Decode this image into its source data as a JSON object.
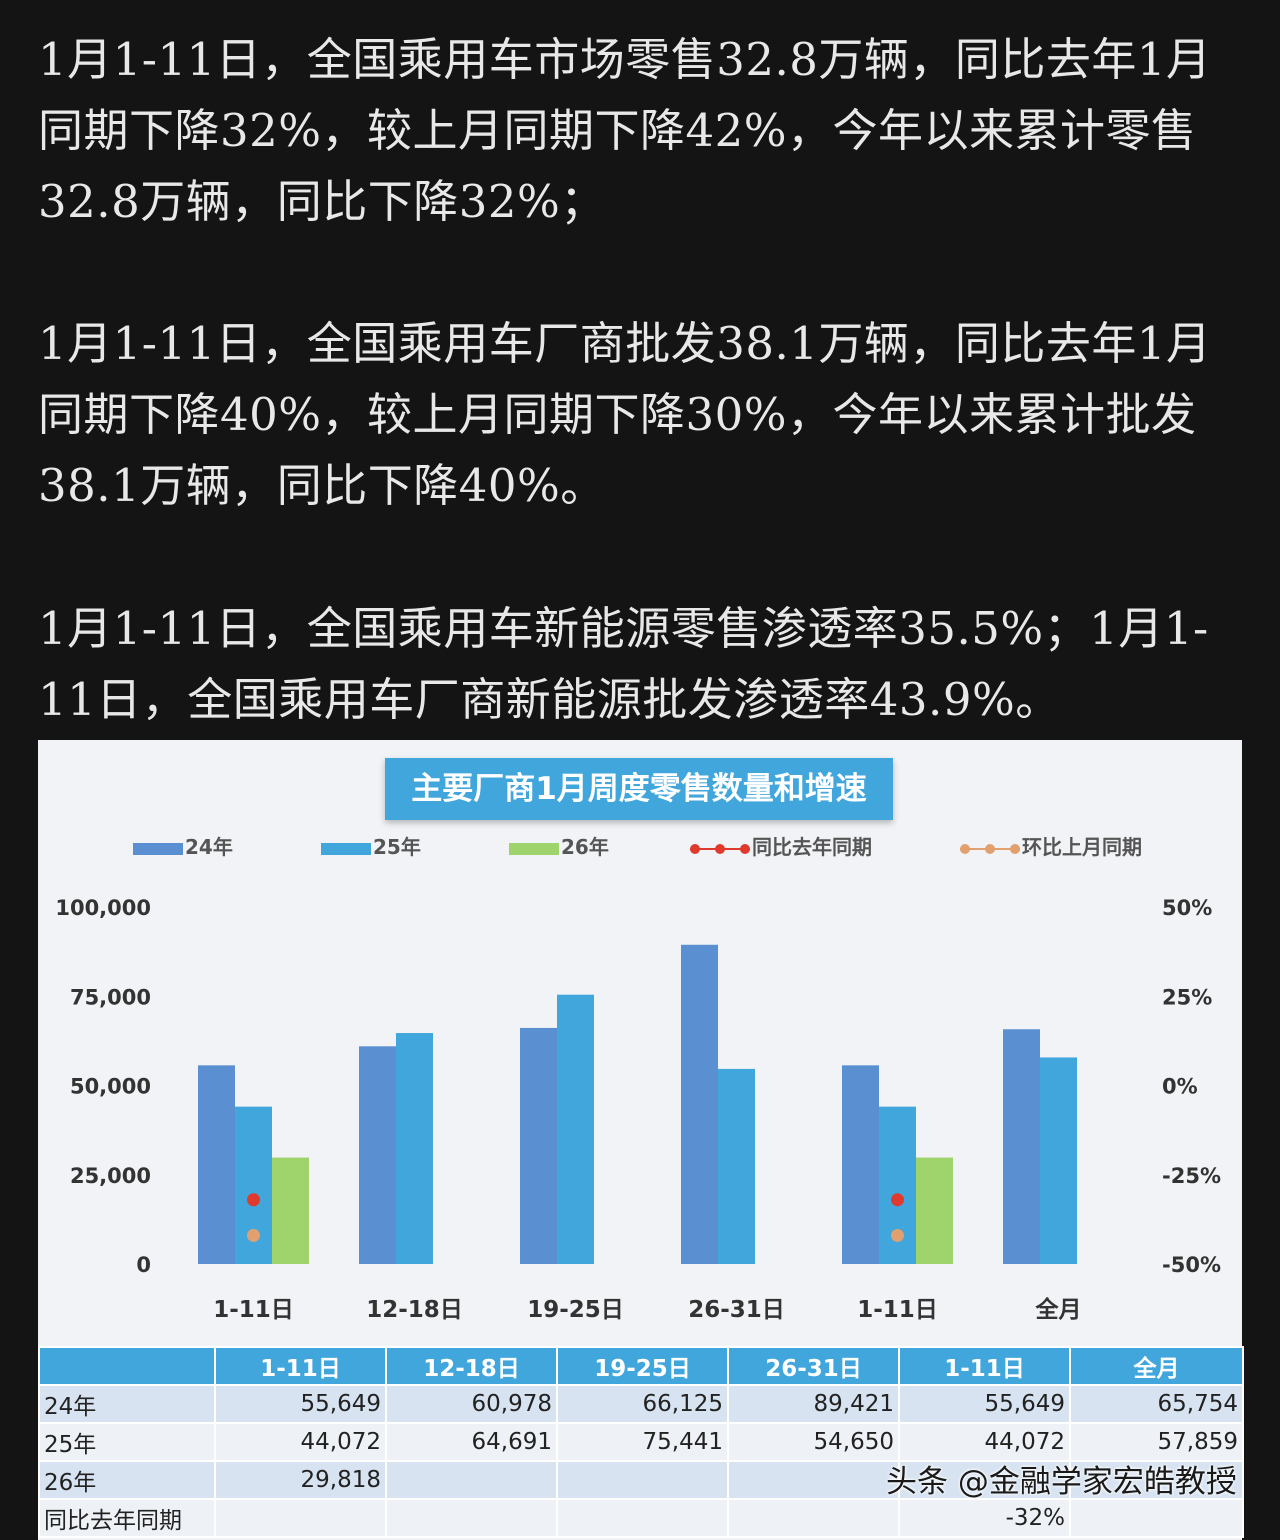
{
  "paragraphs": [
    "1月1-11日，全国乘用车市场零售32.8万辆，同比去年1月同期下降32%，较上月同期下降42%，今年以来累计零售32.8万辆，同比下降32%；",
    "1月1-11日，全国乘用车厂商批发38.1万辆，同比去年1月同期下降40%，较上月同期下降30%，今年以来累计批发38.1万辆，同比下降40%。",
    "1月1-11日，全国乘用车新能源零售渗透率35.5%；1月1-11日，全国乘用车厂商新能源批发渗透率43.9%。"
  ],
  "chart_data": {
    "type": "bar",
    "title": "主要厂商1月周度零售数量和增速",
    "categories": [
      "1-11日",
      "12-18日",
      "19-25日",
      "26-31日",
      "1-11日",
      "全月"
    ],
    "series": [
      {
        "name": "24年",
        "values": [
          55649,
          60978,
          66125,
          89421,
          55649,
          65754
        ],
        "color": "#5a8fd2"
      },
      {
        "name": "25年",
        "values": [
          44072,
          64691,
          75441,
          54650,
          44072,
          57859
        ],
        "color": "#41a6dc"
      },
      {
        "name": "26年",
        "values": [
          29818,
          null,
          null,
          null,
          29818,
          null
        ],
        "color": "#9fd36b"
      }
    ],
    "line_series": [
      {
        "name": "同比去年同期",
        "values": [
          -32,
          null,
          null,
          null,
          -32,
          null
        ],
        "color": "#e03a2e"
      },
      {
        "name": "环比上月同期",
        "values": [
          -42,
          null,
          null,
          null,
          -42,
          null
        ],
        "color": "#e2a06e"
      }
    ],
    "y_left": {
      "min": 0,
      "max": 100000,
      "ticks": [
        "0",
        "25,000",
        "50,000",
        "75,000",
        "100,000"
      ]
    },
    "y_right": {
      "min": -50,
      "max": 50,
      "ticks": [
        "-50%",
        "-25%",
        "0%",
        "25%",
        "50%"
      ]
    },
    "legend_position": "top"
  },
  "table": {
    "headers": [
      "",
      "1-11日",
      "12-18日",
      "19-25日",
      "26-31日",
      "1-11日",
      "全月"
    ],
    "rows": [
      {
        "label": "24年",
        "cells": [
          "55,649",
          "60,978",
          "66,125",
          "89,421",
          "55,649",
          "65,754"
        ]
      },
      {
        "label": "25年",
        "cells": [
          "44,072",
          "64,691",
          "75,441",
          "54,650",
          "44,072",
          "57,859"
        ]
      },
      {
        "label": "26年",
        "cells": [
          "29,818",
          "",
          "",
          "",
          "",
          ""
        ]
      },
      {
        "label": "同比去年同期",
        "cells": [
          "",
          "",
          "",
          "",
          "-32%",
          ""
        ]
      }
    ]
  },
  "watermark": "头条 @金融学家宏皓教授"
}
